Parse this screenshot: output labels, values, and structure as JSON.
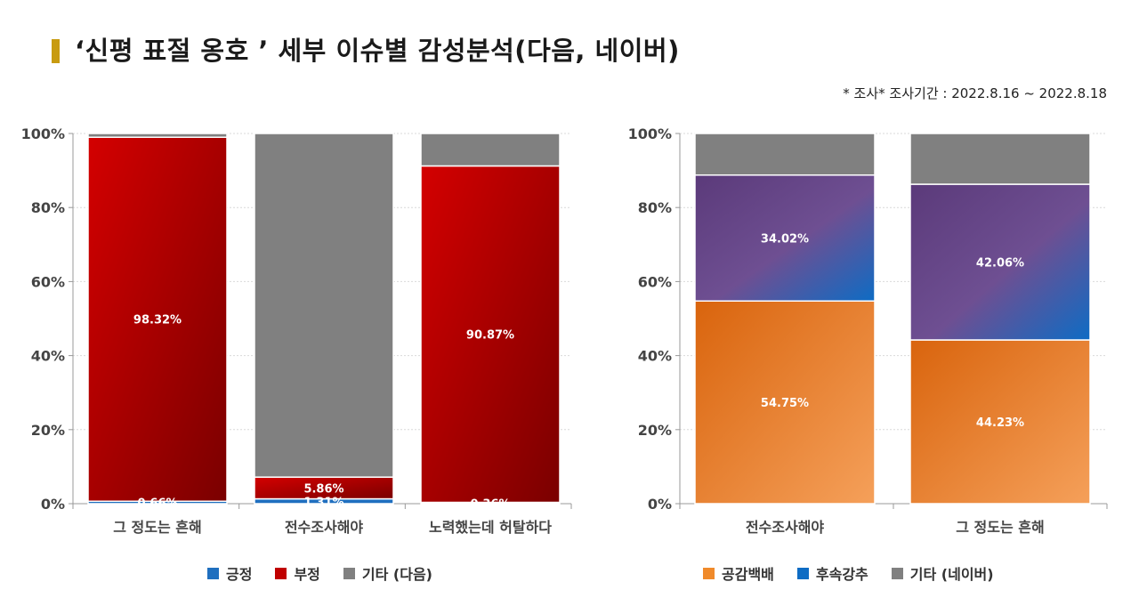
{
  "header": {
    "title": "‘신평 표절 옹호 ’ 세부 이슈별 감성분석(다음, 네이버)",
    "note": "* 조사* 조사기간 : 2022.8.16 ~ 2022.8.18"
  },
  "colors": {
    "positive": "#1f6fbf",
    "negative": "#c00000",
    "other": "#808080",
    "empathy": "#f08a2a",
    "followup": "#0e6cc4",
    "purple": "#6a4c8c"
  },
  "chart_data": [
    {
      "type": "bar",
      "stacked": true,
      "categories": [
        "그 정도는 흔해",
        "전수조사해야",
        "노력했는데 허탈하다"
      ],
      "series": [
        {
          "name": "긍정",
          "values": [
            0.66,
            1.31,
            0.36
          ],
          "labels": [
            "0.66%",
            "1.31%",
            "0.36%"
          ]
        },
        {
          "name": "부정",
          "values": [
            98.32,
            5.86,
            90.87
          ],
          "labels": [
            "98.32%",
            "5.86%",
            "90.87%"
          ]
        },
        {
          "name": "기타 (다음)",
          "values": [
            1.02,
            92.83,
            8.77
          ]
        }
      ],
      "yticks": [
        "0%",
        "20%",
        "40%",
        "60%",
        "80%",
        "100%"
      ],
      "ylim": [
        0,
        100
      ],
      "grid": true,
      "legend": "bottom"
    },
    {
      "type": "bar",
      "stacked": true,
      "categories": [
        "전수조사해야",
        "그 정도는 흔해"
      ],
      "series": [
        {
          "name": "공감백배",
          "values": [
            54.75,
            44.23
          ],
          "labels": [
            "54.75%",
            "44.23%"
          ]
        },
        {
          "name": "후속강추",
          "values": [
            34.02,
            42.06
          ],
          "labels": [
            "34.02%",
            "42.06%"
          ]
        },
        {
          "name": "기타 (네이버)",
          "values": [
            11.23,
            13.71
          ]
        }
      ],
      "yticks": [
        "0%",
        "20%",
        "40%",
        "60%",
        "80%",
        "100%"
      ],
      "ylim": [
        0,
        100
      ],
      "grid": true,
      "legend": "bottom"
    }
  ]
}
